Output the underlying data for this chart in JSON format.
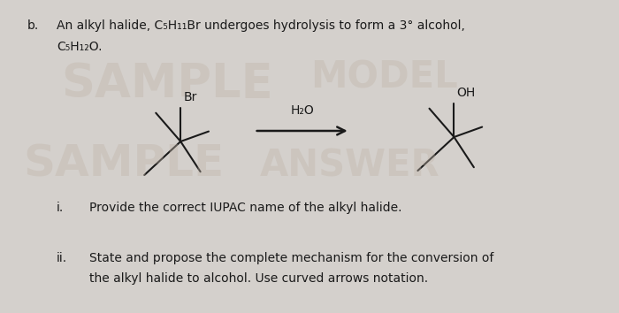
{
  "bg_color": "#d4d0cc",
  "title_b": "b.",
  "line1": "An alkyl halide, C₅H₁₁Br undergoes hydrolysis to form a 3° alcohol,",
  "line2": "C₅H₁₂O.",
  "label_br": "Br",
  "label_h2o": "H₂O",
  "label_oh": "OH",
  "q_i_num": "i.",
  "q_i_text": "Provide the correct IUPAC name of the alkyl halide.",
  "q_ii_num": "ii.",
  "q_ii_line1": "State and propose the complete mechanism for the conversion of",
  "q_ii_line2": "the alkyl halide to alcohol. Use curved arrows notation.",
  "watermark_colors": [
    "#c0b4a8",
    "#b8aaa0"
  ],
  "text_color": "#1a1a1a",
  "struct_color": "#1a1a1a",
  "arrow_color": "#1a1a1a",
  "wm_alpha": 0.38
}
